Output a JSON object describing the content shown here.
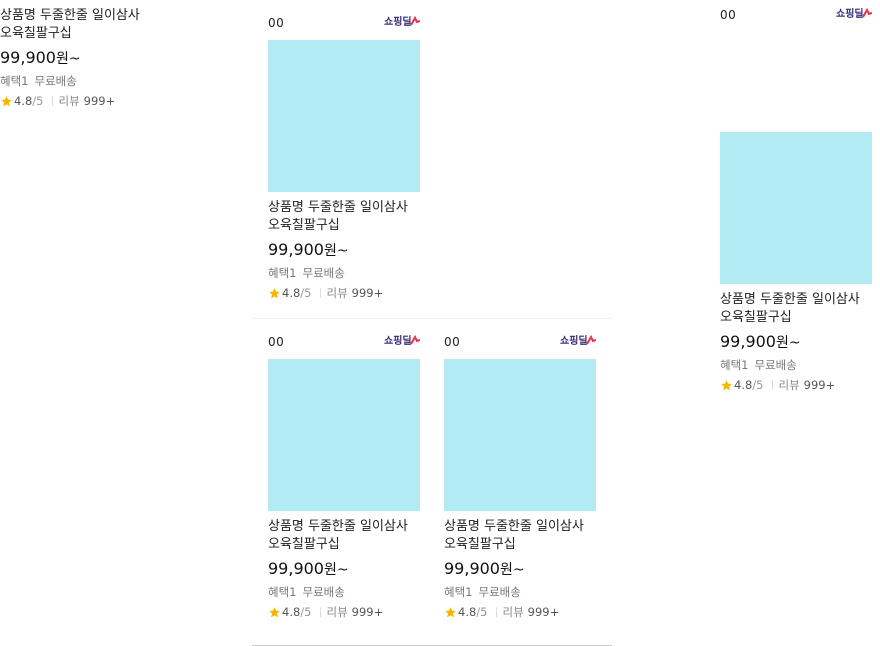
{
  "colors": {
    "thumbnail": "#b3ebf2",
    "star": "#f5b800",
    "logo_text": "#3a2d7a",
    "logo_accent": "#e8324b"
  },
  "cards": [
    {
      "rank": "",
      "name_line1": "상품명 두줄한줄 일이삼사",
      "name_line2": "오육칠팔구십",
      "price": "99,900",
      "price_unit": "원~",
      "benefit1": "혜택1",
      "benefit2": "무료배송",
      "rating": "4.8",
      "rating_max": "/5",
      "review_label": "리뷰",
      "review_count": "999+",
      "logo_icon": "shopping-live-logo"
    },
    {
      "rank": "00",
      "name_line1": "상품명 두줄한줄 일이삼사",
      "name_line2": "오육칠팔구십",
      "price": "99,900",
      "price_unit": "원~",
      "benefit1": "혜택1",
      "benefit2": "무료배송",
      "rating": "4.8",
      "rating_max": "/5",
      "review_label": "리뷰",
      "review_count": "999+",
      "logo_icon": "shopping-live-logo"
    },
    {
      "rank": "00",
      "name_line1": "상품명 두줄한줄 일이삼사",
      "name_line2": "오육칠팔구십",
      "price": "99,900",
      "price_unit": "원~",
      "benefit1": "혜택1",
      "benefit2": "무료배송",
      "rating": "4.8",
      "rating_max": "/5",
      "review_label": "리뷰",
      "review_count": "999+",
      "logo_icon": "shopping-live-logo"
    },
    {
      "rank": "00",
      "name_line1": "상품명 두줄한줄 일이삼사",
      "name_line2": "오육칠팔구십",
      "price": "99,900",
      "price_unit": "원~",
      "benefit1": "혜택1",
      "benefit2": "무료배송",
      "rating": "4.8",
      "rating_max": "/5",
      "review_label": "리뷰",
      "review_count": "999+",
      "logo_icon": "shopping-live-logo"
    },
    {
      "rank": "00",
      "name_line1": "상품명 두줄한줄 일이삼사",
      "name_line2": "오육칠팔구십",
      "price": "99,900",
      "price_unit": "원~",
      "benefit1": "혜택1",
      "benefit2": "무료배송",
      "rating": "4.8",
      "rating_max": "/5",
      "review_label": "리뷰",
      "review_count": "999+",
      "logo_icon": "shopping-live-logo"
    }
  ]
}
